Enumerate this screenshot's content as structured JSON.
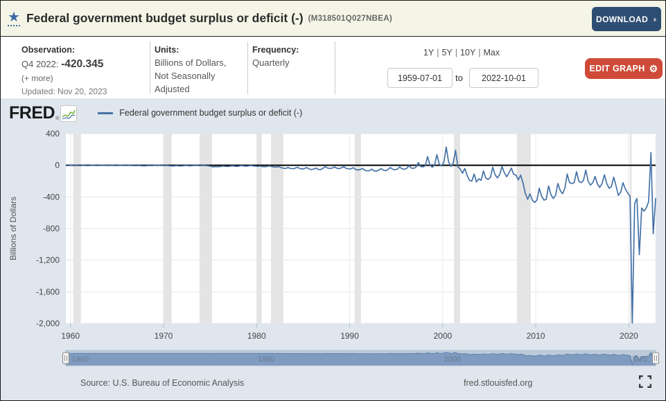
{
  "header": {
    "title": "Federal government budget surplus or deficit (-)",
    "series_id": "(M318501Q027NBEA)",
    "download_label": "DOWNLOAD"
  },
  "info_bar": {
    "observation": {
      "label": "Observation:",
      "period": "Q4 2022:",
      "value": "-420.345",
      "more": "(+ more)",
      "updated": "Updated: Nov 20, 2023"
    },
    "units": {
      "label": "Units:",
      "line1": "Billions of Dollars,",
      "line2": "Not Seasonally",
      "line3": "Adjusted"
    },
    "frequency": {
      "label": "Frequency:",
      "value": "Quarterly"
    },
    "ranges": {
      "r1": "1Y",
      "r2": "5Y",
      "r3": "10Y",
      "r4": "Max",
      "sep": "|"
    },
    "date_range": {
      "start": "1959-07-01",
      "to_label": "to",
      "end": "2022-10-01"
    },
    "edit_graph_label": "EDIT GRAPH"
  },
  "graph": {
    "logo": "FRED",
    "reg_mark": "®",
    "legend_label": "Federal government budget surplus or deficit (-)",
    "y_axis_title": "Billions of Dollars"
  },
  "footer": {
    "source": "Source: U.S. Bureau of Economic Analysis",
    "site": "fred.stlouisfed.org"
  },
  "colors": {
    "line_blue": "#4572a7",
    "navy_button": "#2e4d72",
    "red_button": "#cf4a38",
    "header_bg": "#f5f5e7",
    "chart_bg": "#dfe6ed",
    "recession_band": "#e4e4e4",
    "zero_line": "#000000",
    "slider_fill": "#8aa5c9"
  },
  "chart_data": {
    "type": "line",
    "title": "Federal government budget surplus or deficit (-)",
    "ylabel": "Billions of Dollars",
    "units": "Billions of Dollars, Not Seasonally Adjusted",
    "frequency": "Quarterly",
    "legend": [
      "Federal government budget surplus or deficit (-)"
    ],
    "xlim": [
      1959.5,
      2022.875
    ],
    "ylim": [
      -2000,
      400
    ],
    "x_ticks": [
      1960,
      1970,
      1980,
      1990,
      2000,
      2010,
      2020
    ],
    "x_tick_labels": [
      "1960",
      "1970",
      "1980",
      "1990",
      "2000",
      "2010",
      "2020"
    ],
    "y_ticks": [
      400,
      0,
      -400,
      -800,
      -1200,
      -1600,
      -2000
    ],
    "y_tick_labels": [
      "400",
      "0",
      "-400",
      "-800",
      "-1,200",
      "-1,600",
      "-2,000"
    ],
    "zero_line": true,
    "grid": true,
    "recessions": [
      [
        1960.29,
        1961.12
      ],
      [
        1969.96,
        1970.87
      ],
      [
        1973.87,
        1975.21
      ],
      [
        1980.04,
        1980.54
      ],
      [
        1981.54,
        1982.87
      ],
      [
        1990.54,
        1991.21
      ],
      [
        2001.21,
        2001.87
      ],
      [
        2007.96,
        2009.46
      ],
      [
        2020.12,
        2020.29
      ]
    ],
    "slider_ticks": [
      {
        "year": 1960,
        "label": "1960"
      },
      {
        "year": 1980,
        "label": "1980"
      },
      {
        "year": 2000,
        "label": "2000"
      },
      {
        "year": 2020,
        "label": "2020"
      }
    ],
    "start_year": 1959,
    "start_quarter": 3,
    "values": [
      -3,
      -4,
      2,
      5,
      -1,
      -3,
      -4,
      1,
      -3,
      -4,
      -3,
      2,
      -2,
      -4,
      -2,
      3,
      -1,
      -2,
      -3,
      1,
      -2,
      -4,
      -2,
      3,
      -1,
      -3,
      -2,
      1,
      -3,
      -4,
      -5,
      -2,
      -6,
      -7,
      -6,
      -2,
      -4,
      -3,
      1,
      4,
      -1,
      -3,
      -4,
      -1,
      -6,
      -9,
      -8,
      -4,
      -7,
      -9,
      -6,
      -2,
      -5,
      -7,
      -4,
      -1,
      -3,
      -5,
      -3,
      -2,
      -5,
      -8,
      -14,
      -20,
      -16,
      -18,
      -15,
      -9,
      -13,
      -15,
      -12,
      -6,
      -11,
      -14,
      -10,
      -4,
      -9,
      -12,
      -8,
      -3,
      -8,
      -11,
      -13,
      -10,
      -16,
      -19,
      -14,
      -8,
      -15,
      -22,
      -22,
      -16,
      -28,
      -38,
      -40,
      -28,
      -40,
      -44,
      -38,
      -25,
      -40,
      -47,
      -42,
      -28,
      -45,
      -55,
      -48,
      -35,
      -52,
      -55,
      -38,
      -18,
      -35,
      -40,
      -35,
      -20,
      -38,
      -42,
      -32,
      -18,
      -40,
      -45,
      -45,
      -30,
      -52,
      -60,
      -55,
      -40,
      -62,
      -70,
      -68,
      -48,
      -70,
      -74,
      -62,
      -42,
      -62,
      -68,
      -52,
      -28,
      -50,
      -56,
      -48,
      -20,
      -44,
      -50,
      -40,
      -5,
      -35,
      -38,
      -25,
      35,
      -15,
      -20,
      -5,
      110,
      5,
      -25,
      5,
      135,
      15,
      -10,
      40,
      230,
      45,
      -15,
      25,
      190,
      -20,
      -45,
      -100,
      -40,
      -130,
      -190,
      -200,
      -110,
      -210,
      -170,
      -190,
      -70,
      -160,
      -180,
      -150,
      -25,
      -120,
      -160,
      -115,
      -15,
      -95,
      -145,
      -95,
      -35,
      -115,
      -125,
      -185,
      -125,
      -225,
      -355,
      -430,
      -360,
      -440,
      -470,
      -440,
      -290,
      -390,
      -440,
      -430,
      -260,
      -370,
      -420,
      -380,
      -230,
      -320,
      -360,
      -290,
      -110,
      -220,
      -230,
      -220,
      -80,
      -200,
      -220,
      -190,
      -60,
      -200,
      -250,
      -220,
      -140,
      -240,
      -280,
      -230,
      -120,
      -230,
      -290,
      -270,
      -150,
      -260,
      -380,
      -340,
      -220,
      -300,
      -350,
      -390,
      -1996,
      -480,
      -420,
      -1131,
      -540,
      -580,
      -540,
      -460,
      160,
      -866,
      -420.345
    ]
  }
}
